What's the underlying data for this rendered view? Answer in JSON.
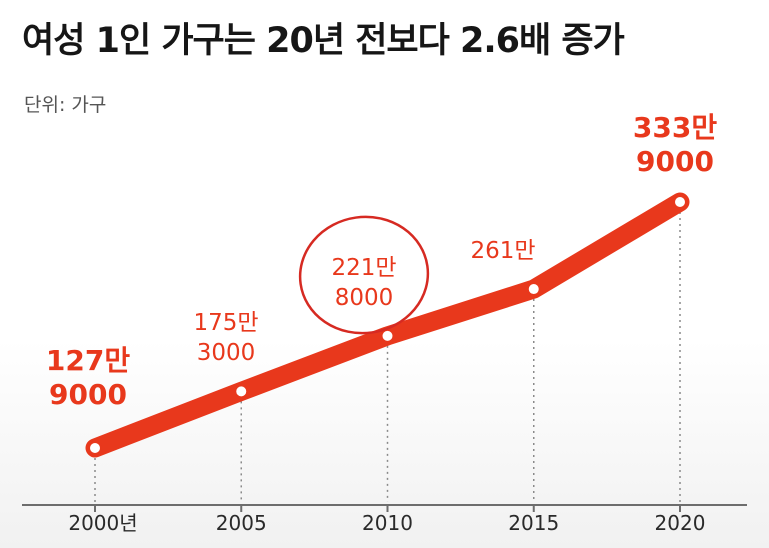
{
  "title": "여성 1인 가구는 20년 전보다 2.6배 증가",
  "unit_label": "단위: 가구",
  "colors": {
    "line": "#e8381c",
    "label": "#e8381c",
    "highlight_circle": "#d62a22",
    "axis": "#6d6d6d",
    "tick_text": "#2a2a2a"
  },
  "chart_data": {
    "type": "line",
    "title": "여성 1인 가구는 20년 전보다 2.6배 증가",
    "unit": "단위: 가구",
    "x": [
      2000,
      2005,
      2010,
      2015,
      2020
    ],
    "tick_labels": [
      "2000년",
      "2005",
      "2010",
      "2015",
      "2020"
    ],
    "values": [
      1279000,
      1753000,
      2218000,
      2610000,
      3339000
    ],
    "data_labels": [
      [
        "127만",
        "9000"
      ],
      [
        "175만",
        "3000"
      ],
      [
        "221만",
        "8000"
      ],
      [
        "261만"
      ],
      [
        "333만",
        "9000"
      ]
    ],
    "bold_labels": [
      0,
      4
    ],
    "highlighted_index": 2,
    "xlabel": "",
    "ylabel": "",
    "grid": false,
    "legend": "none"
  }
}
